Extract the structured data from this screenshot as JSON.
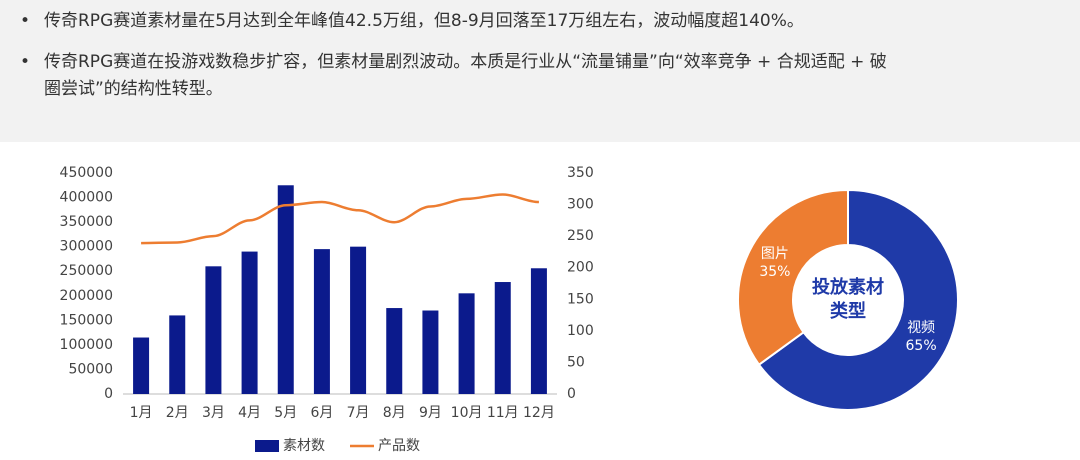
{
  "bullets": [
    "传奇RPG赛道素材量在5月达到全年峰值42.5万组，但8-9月回落至17万组左右，波动幅度超140%。",
    "传奇RPG赛道在投游戏数稳步扩容，但素材量剧烈波动。本质是行业从“流量铺量”向“效率竞争 + 合规适配 + 破圈尝试”的结构性转型。"
  ],
  "chart_data": [
    {
      "type": "bar-line",
      "categories": [
        "1月",
        "2月",
        "3月",
        "4月",
        "5月",
        "6月",
        "7月",
        "8月",
        "9月",
        "10月",
        "11月",
        "12月"
      ],
      "series": [
        {
          "name": "素材数",
          "color": "#0b1a8c",
          "values": [
            115000,
            160000,
            260000,
            290000,
            425000,
            295000,
            300000,
            175000,
            170000,
            205000,
            228000,
            256000
          ]
        },
        {
          "name": "产品数",
          "color": "#ed7d31",
          "axis": "y2",
          "values": [
            239,
            240,
            250,
            275,
            299,
            304,
            291,
            272,
            297,
            309,
            316,
            304
          ]
        }
      ],
      "ylim": [
        0,
        450000
      ],
      "yticks": [
        0,
        50000,
        100000,
        150000,
        200000,
        250000,
        300000,
        350000,
        400000,
        450000
      ],
      "y2lim": [
        0,
        350
      ],
      "y2ticks": [
        0,
        50,
        100,
        150,
        200,
        250,
        300,
        350
      ],
      "legend": "bottom"
    },
    {
      "type": "donut",
      "categories": [
        "视频",
        "图片"
      ],
      "values": [
        65,
        35
      ],
      "value_labels": [
        "65%",
        "35%"
      ],
      "colors": [
        "#1f3aa8",
        "#ed7d31"
      ],
      "center_label": [
        "投放素材",
        "类型"
      ]
    }
  ]
}
